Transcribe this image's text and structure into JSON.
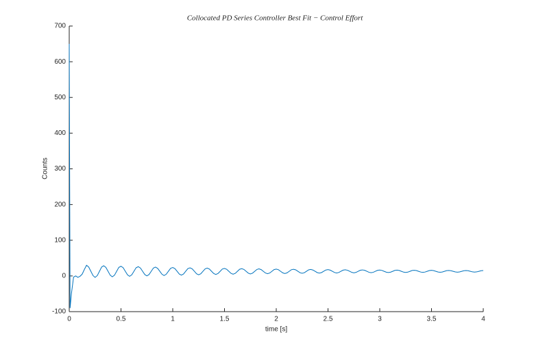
{
  "chart_data": {
    "type": "line",
    "title": "Collocated PD Series Controller Best Fit − Control Effort",
    "x_label": "time [s]",
    "y_label": "Counts",
    "color": "#0072bd",
    "xlim": [
      0,
      4
    ],
    "ylim": [
      -100,
      700
    ],
    "xticks": [
      0,
      0.5,
      1,
      1.5,
      2,
      2.5,
      3,
      3.5,
      4
    ],
    "yticks": [
      -100,
      0,
      100,
      200,
      300,
      400,
      500,
      600,
      700
    ],
    "grid": false,
    "x": [
      0,
      0.008,
      0.021,
      0.042,
      0.063,
      0.083,
      0.104,
      0.125,
      0.146,
      0.167,
      0.188,
      0.209,
      0.23,
      0.25,
      0.271,
      0.292,
      0.313,
      0.333,
      0.354,
      0.375,
      0.396,
      0.416,
      0.437,
      0.458,
      0.479,
      0.5,
      0.521,
      0.542,
      0.563,
      0.583,
      0.604,
      0.625,
      0.646,
      0.667,
      0.688,
      0.709,
      0.73,
      0.75,
      0.771,
      0.792,
      0.813,
      0.833,
      0.854,
      0.875,
      0.896,
      0.916,
      0.937,
      0.958,
      0.979,
      1,
      1.021,
      1.042,
      1.063,
      1.083,
      1.104,
      1.125,
      1.146,
      1.167,
      1.188,
      1.209,
      1.23,
      1.25,
      1.271,
      1.292,
      1.313,
      1.333,
      1.354,
      1.375,
      1.396,
      1.416,
      1.437,
      1.458,
      1.479,
      1.5,
      1.521,
      1.542,
      1.563,
      1.583,
      1.604,
      1.625,
      1.646,
      1.667,
      1.688,
      1.709,
      1.73,
      1.75,
      1.771,
      1.792,
      1.813,
      1.833,
      1.854,
      1.875,
      1.896,
      1.916,
      1.937,
      1.958,
      1.979,
      2,
      2.021,
      2.042,
      2.063,
      2.083,
      2.104,
      2.125,
      2.146,
      2.167,
      2.188,
      2.209,
      2.23,
      2.25,
      2.271,
      2.292,
      2.313,
      2.333,
      2.354,
      2.375,
      2.396,
      2.416,
      2.437,
      2.458,
      2.479,
      2.5,
      2.521,
      2.542,
      2.563,
      2.583,
      2.604,
      2.625,
      2.646,
      2.667,
      2.688,
      2.709,
      2.73,
      2.75,
      2.771,
      2.792,
      2.813,
      2.833,
      2.854,
      2.875,
      2.896,
      2.916,
      2.937,
      2.958,
      2.979,
      3,
      3.021,
      3.042,
      3.063,
      3.083,
      3.104,
      3.125,
      3.146,
      3.167,
      3.188,
      3.209,
      3.23,
      3.25,
      3.271,
      3.292,
      3.313,
      3.333,
      3.354,
      3.375,
      3.396,
      3.416,
      3.437,
      3.458,
      3.479,
      3.5,
      3.521,
      3.542,
      3.563,
      3.583,
      3.604,
      3.625,
      3.646,
      3.667,
      3.688,
      3.709,
      3.73,
      3.75,
      3.771,
      3.792,
      3.813,
      3.833,
      3.854,
      3.875,
      3.896,
      3.916,
      3.937,
      3.958,
      3.979,
      4
    ],
    "values": [
      650,
      -90,
      -50,
      -3,
      0,
      -4,
      -1,
      5,
      18,
      30,
      25,
      13,
      1,
      -4,
      1,
      13,
      25,
      28.5,
      24,
      13,
      2,
      -2.5,
      2,
      13,
      24,
      27.1,
      23,
      13,
      3,
      -1.1,
      3,
      13,
      23,
      25.9,
      22.1,
      13,
      3.9,
      0.1,
      3.9,
      13,
      22.1,
      24.8,
      21.3,
      13,
      4.7,
      1.2,
      4.7,
      13,
      21.3,
      23.7,
      20.6,
      13,
      5.4,
      2.3,
      5.4,
      13,
      20.6,
      22.8,
      19.9,
      13,
      6.1,
      3.2,
      6.1,
      13,
      19.9,
      21.9,
      19.3,
      13,
      6.7,
      4.1,
      6.7,
      13,
      19.3,
      21.1,
      18.7,
      13,
      7.3,
      4.9,
      7.3,
      13,
      18.7,
      20.4,
      18.2,
      13,
      7.8,
      5.6,
      7.8,
      13,
      18.2,
      19.8,
      17.8,
      13,
      8.2,
      6.2,
      8.2,
      13,
      17.8,
      19.2,
      17.4,
      13,
      8.6,
      6.8,
      8.6,
      13,
      17.4,
      18.6,
      17,
      13,
      9,
      7.4,
      9,
      13,
      17,
      18.1,
      16.6,
      13,
      9.4,
      7.9,
      9.4,
      13,
      16.6,
      17.7,
      16.3,
      13,
      9.7,
      8.3,
      9.7,
      13,
      16.3,
      17.3,
      16,
      13,
      10,
      8.7,
      10,
      13,
      16,
      16.9,
      15.8,
      13,
      10.2,
      9.1,
      10.2,
      13,
      15.8,
      16.5,
      15.5,
      13,
      10.5,
      9.5,
      10.5,
      13,
      15.5,
      16.2,
      15.3,
      13,
      10.7,
      9.8,
      10.7,
      13,
      15.3,
      15.9,
      15.1,
      13,
      10.9,
      10.1,
      10.9,
      13,
      15.1,
      15.7,
      14.9,
      13,
      11.1,
      10.3,
      11.1,
      13,
      14.9,
      15.4,
      14.7,
      13,
      11.3,
      10.6,
      11.3,
      13,
      14.7,
      15.2,
      14.6,
      13,
      11.4,
      10.8,
      11.4,
      13,
      14.6,
      15
    ]
  }
}
